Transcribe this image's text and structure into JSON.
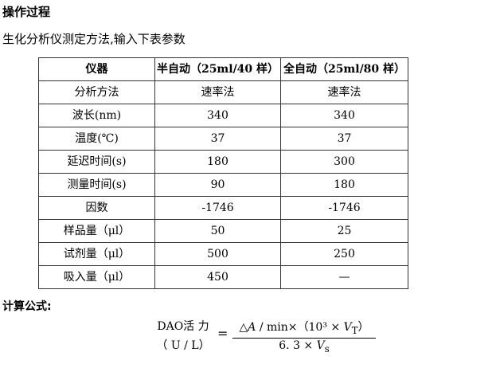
{
  "title": "操作过程",
  "intro": "生化分析仪测定方法,输入下表参数",
  "table": {
    "headers": [
      "仪器",
      "半自动（25ml/40 样）",
      "全自动（25ml/80 样）"
    ],
    "rows": [
      [
        "分析方法",
        "速率法",
        "速率法"
      ],
      [
        "波长(nm)",
        "340",
        "340"
      ],
      [
        "温度(℃)",
        "37",
        "37"
      ],
      [
        "延迟时间(s)",
        "180",
        "300"
      ],
      [
        "测量时间(s)",
        "90",
        "180"
      ],
      [
        "因数",
        "-1746",
        "-1746"
      ],
      [
        "样品量（μl）",
        "50",
        "25"
      ],
      [
        "试剂量（μl）",
        "500",
        "250"
      ],
      [
        "吸入量（μl）",
        "450",
        "—"
      ]
    ]
  },
  "formula_heading": "计算公式:",
  "formula": {
    "lhs_top": "DAO活 力",
    "lhs_bottom": "（ U / L）",
    "equals": "=",
    "numerator": "△A / min×（10³ × V_T）",
    "denominator": "6. 3 × V_s"
  }
}
